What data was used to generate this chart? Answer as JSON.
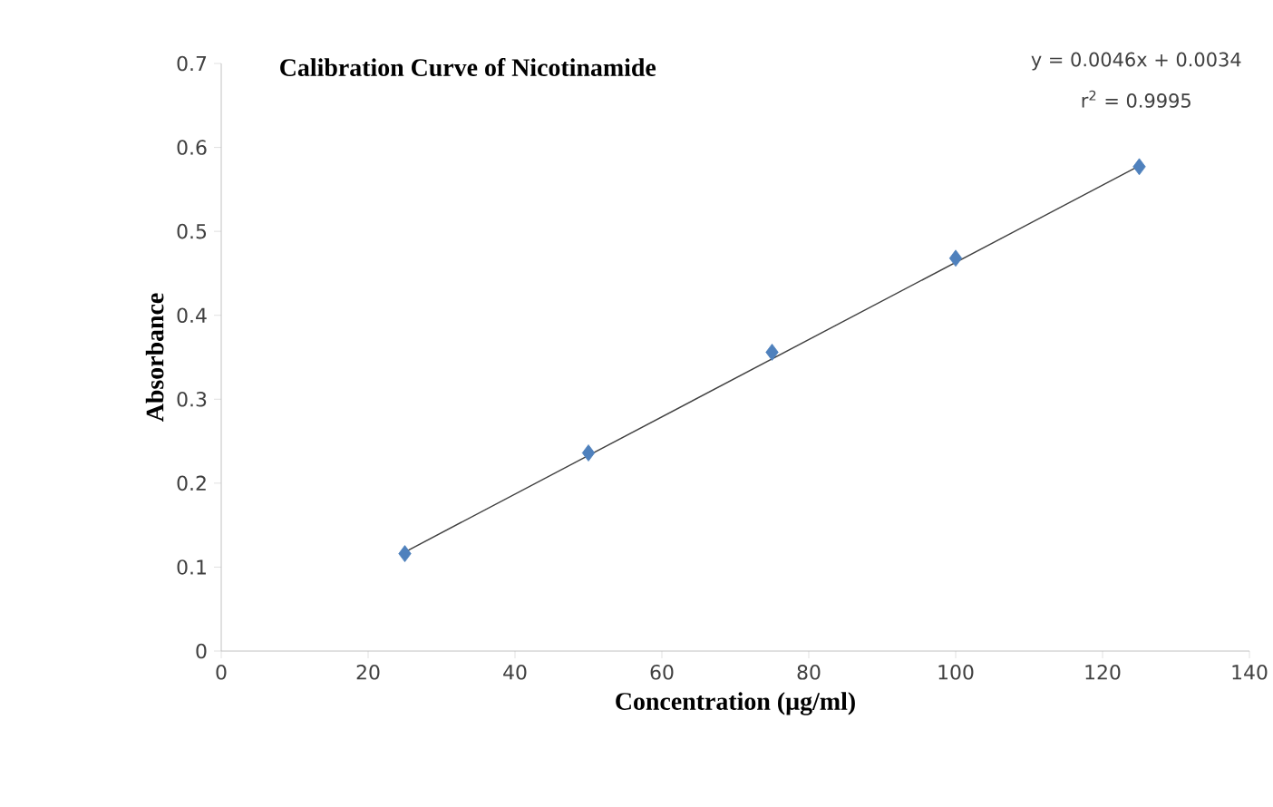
{
  "chart_data": {
    "type": "scatter",
    "title": "Calibration Curve of Nicotinamide",
    "xlabel": "Concentration (µg/ml)",
    "ylabel": "Absorbance",
    "x": [
      25,
      50,
      75,
      100,
      125
    ],
    "series": [
      {
        "color": "#4f81bd",
        "marker": "diamond",
        "values": [
          0.116,
          0.236,
          0.356,
          0.468,
          0.577
        ]
      },
      {
        "type": "line",
        "color": "#404040",
        "marker": "none",
        "line_style": "solid",
        "x": [
          25,
          125
        ],
        "values": [
          0.118,
          0.578
        ]
      }
    ],
    "annotations": [
      "y = 0.0046x + 0.0034",
      "r$^{2}$ = 0.9995"
    ],
    "xlim": [
      0,
      140
    ],
    "xticks": [
      0,
      20,
      40,
      60,
      80,
      100,
      120,
      140
    ],
    "ylim": [
      0,
      0.7
    ],
    "yticks": [
      0,
      0.1,
      0.2,
      0.3,
      0.4,
      0.5,
      0.6,
      0.7
    ],
    "grid": false
  }
}
